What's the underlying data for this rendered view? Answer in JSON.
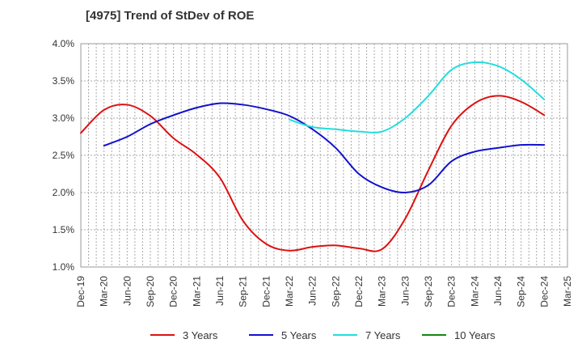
{
  "chart_data": {
    "type": "line",
    "title": "[4975]  Trend of StDev of ROE",
    "xlabel": "",
    "ylabel": "",
    "categories": [
      "Dec-19",
      "Mar-20",
      "Jun-20",
      "Sep-20",
      "Dec-20",
      "Mar-21",
      "Jun-21",
      "Sep-21",
      "Dec-21",
      "Mar-22",
      "Jun-22",
      "Sep-22",
      "Dec-22",
      "Mar-23",
      "Jun-23",
      "Sep-23",
      "Dec-23",
      "Mar-24",
      "Jun-24",
      "Sep-24",
      "Dec-24",
      "Mar-25"
    ],
    "y_ticks": [
      "1.0%",
      "1.5%",
      "2.0%",
      "2.5%",
      "3.0%",
      "3.5%",
      "4.0%"
    ],
    "ylim": [
      1.0,
      4.0
    ],
    "grid": true,
    "legend_position": "bottom",
    "series": [
      {
        "name": "3 Years",
        "color": "#dd1111",
        "values": [
          2.8,
          3.11,
          3.18,
          3.03,
          2.73,
          2.51,
          2.2,
          1.62,
          1.31,
          1.22,
          1.27,
          1.29,
          1.25,
          1.24,
          1.65,
          2.3,
          2.9,
          3.2,
          3.3,
          3.22,
          3.04,
          null
        ]
      },
      {
        "name": "5 Years",
        "color": "#1111cc",
        "values": [
          null,
          2.63,
          2.75,
          2.92,
          3.04,
          3.14,
          3.2,
          3.18,
          3.12,
          3.03,
          2.85,
          2.6,
          2.25,
          2.07,
          2.0,
          2.1,
          2.42,
          2.55,
          2.6,
          2.64,
          2.64,
          null
        ]
      },
      {
        "name": "7 Years",
        "color": "#22dddd",
        "values": [
          null,
          null,
          null,
          null,
          null,
          null,
          null,
          null,
          null,
          2.98,
          2.88,
          2.85,
          2.82,
          2.82,
          3.0,
          3.3,
          3.65,
          3.75,
          3.7,
          3.52,
          3.25,
          null
        ]
      },
      {
        "name": "10 Years",
        "color": "#118811",
        "values": [
          null,
          null,
          null,
          null,
          null,
          null,
          null,
          null,
          null,
          null,
          null,
          null,
          null,
          null,
          null,
          null,
          null,
          null,
          null,
          null,
          null,
          null
        ]
      }
    ]
  }
}
